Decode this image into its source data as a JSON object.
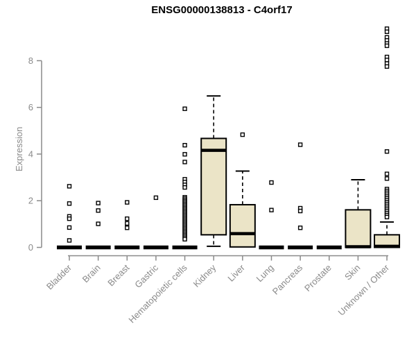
{
  "page": {
    "background": "#ffffff"
  },
  "colors": {
    "box_fill": "#ebe4c7",
    "box_border": "#000000",
    "median": "#000000",
    "axis": "#8a8a8a",
    "axis_text": "#8a8a8a",
    "title_text": "#000000",
    "outlier": "#000000",
    "outlier_fill": "#ffffff"
  },
  "chart_data": {
    "type": "boxplot",
    "title": "ENSG00000138813 - C4orf17",
    "xlabel": "",
    "ylabel": "Expression",
    "y_ticks": [
      0,
      2,
      4,
      6,
      8
    ],
    "ylim": [
      0,
      9.5
    ],
    "grid": false,
    "legend": false,
    "categories": [
      "Bladder",
      "Brain",
      "Breast",
      "Gastric",
      "Hematopoietic cells",
      "Kidney",
      "Liver",
      "Lung",
      "Pancreas",
      "Prostate",
      "Skin",
      "Unknown / Other"
    ],
    "series": [
      {
        "name": "Bladder",
        "q1": 0,
        "median": 0,
        "q3": 0,
        "whisker_low": 0,
        "whisker_high": 0,
        "outliers": [
          2.62,
          1.88,
          1.33,
          1.23,
          0.85,
          0.3
        ]
      },
      {
        "name": "Brain",
        "q1": 0,
        "median": 0,
        "q3": 0,
        "whisker_low": 0,
        "whisker_high": 0,
        "outliers": [
          1.9,
          1.58,
          1.01
        ]
      },
      {
        "name": "Breast",
        "q1": 0,
        "median": 0,
        "q3": 0,
        "whisker_low": 0,
        "whisker_high": 0,
        "outliers": [
          1.93,
          1.23,
          1.03,
          0.84
        ]
      },
      {
        "name": "Gastric",
        "q1": 0,
        "median": 0,
        "q3": 0,
        "whisker_low": 0,
        "whisker_high": 0,
        "outliers": [
          2.13
        ]
      },
      {
        "name": "Hematopoietic cells",
        "q1": 0,
        "median": 0,
        "q3": 0,
        "whisker_low": 0,
        "whisker_high": 0,
        "outliers": [
          5.94,
          4.38,
          3.99,
          3.66,
          2.92,
          2.8,
          2.68,
          2.57,
          2.15,
          2.09,
          2.03,
          1.97,
          1.91,
          1.85,
          1.79,
          1.73,
          1.67,
          1.61,
          1.55,
          1.49,
          1.43,
          1.37,
          1.31,
          1.25,
          1.19,
          1.13,
          1.07,
          1.01,
          0.95,
          0.89,
          0.83,
          0.77,
          0.71,
          0.65,
          0.59,
          0.53,
          0.47,
          0.41,
          0.35
        ]
      },
      {
        "name": "Kidney",
        "q1": 0.54,
        "median": 4.16,
        "q3": 4.67,
        "whisker_low": 0.05,
        "whisker_high": 6.49,
        "outliers": []
      },
      {
        "name": "Liver",
        "q1": 0.02,
        "median": 0.59,
        "q3": 1.83,
        "whisker_low": 0.02,
        "whisker_high": 3.27,
        "outliers": [
          4.83
        ]
      },
      {
        "name": "Lung",
        "q1": 0,
        "median": 0,
        "q3": 0,
        "whisker_low": 0,
        "whisker_high": 0,
        "outliers": [
          2.78,
          1.6
        ]
      },
      {
        "name": "Pancreas",
        "q1": 0,
        "median": 0,
        "q3": 0,
        "whisker_low": 0,
        "whisker_high": 0,
        "outliers": [
          4.4,
          1.68,
          1.56,
          0.84
        ]
      },
      {
        "name": "Prostate",
        "q1": 0,
        "median": 0,
        "q3": 0,
        "whisker_low": 0,
        "whisker_high": 0,
        "outliers": []
      },
      {
        "name": "Skin",
        "q1": 0,
        "median": 0.03,
        "q3": 1.61,
        "whisker_low": 0,
        "whisker_high": 2.9,
        "outliers": []
      },
      {
        "name": "Unknown / Other",
        "q1": 0,
        "median": 0.05,
        "q3": 0.54,
        "whisker_low": 0,
        "whisker_high": 1.09,
        "outliers": [
          9.37,
          9.24,
          9.0,
          8.87,
          8.74,
          8.64,
          8.16,
          8.03,
          7.88,
          7.75,
          4.11,
          3.15,
          2.95,
          2.5,
          2.42,
          2.34,
          2.26,
          2.18,
          2.1,
          2.02,
          1.94,
          1.86,
          1.78,
          1.7,
          1.62,
          1.54,
          1.46,
          1.38,
          1.3
        ]
      }
    ]
  }
}
